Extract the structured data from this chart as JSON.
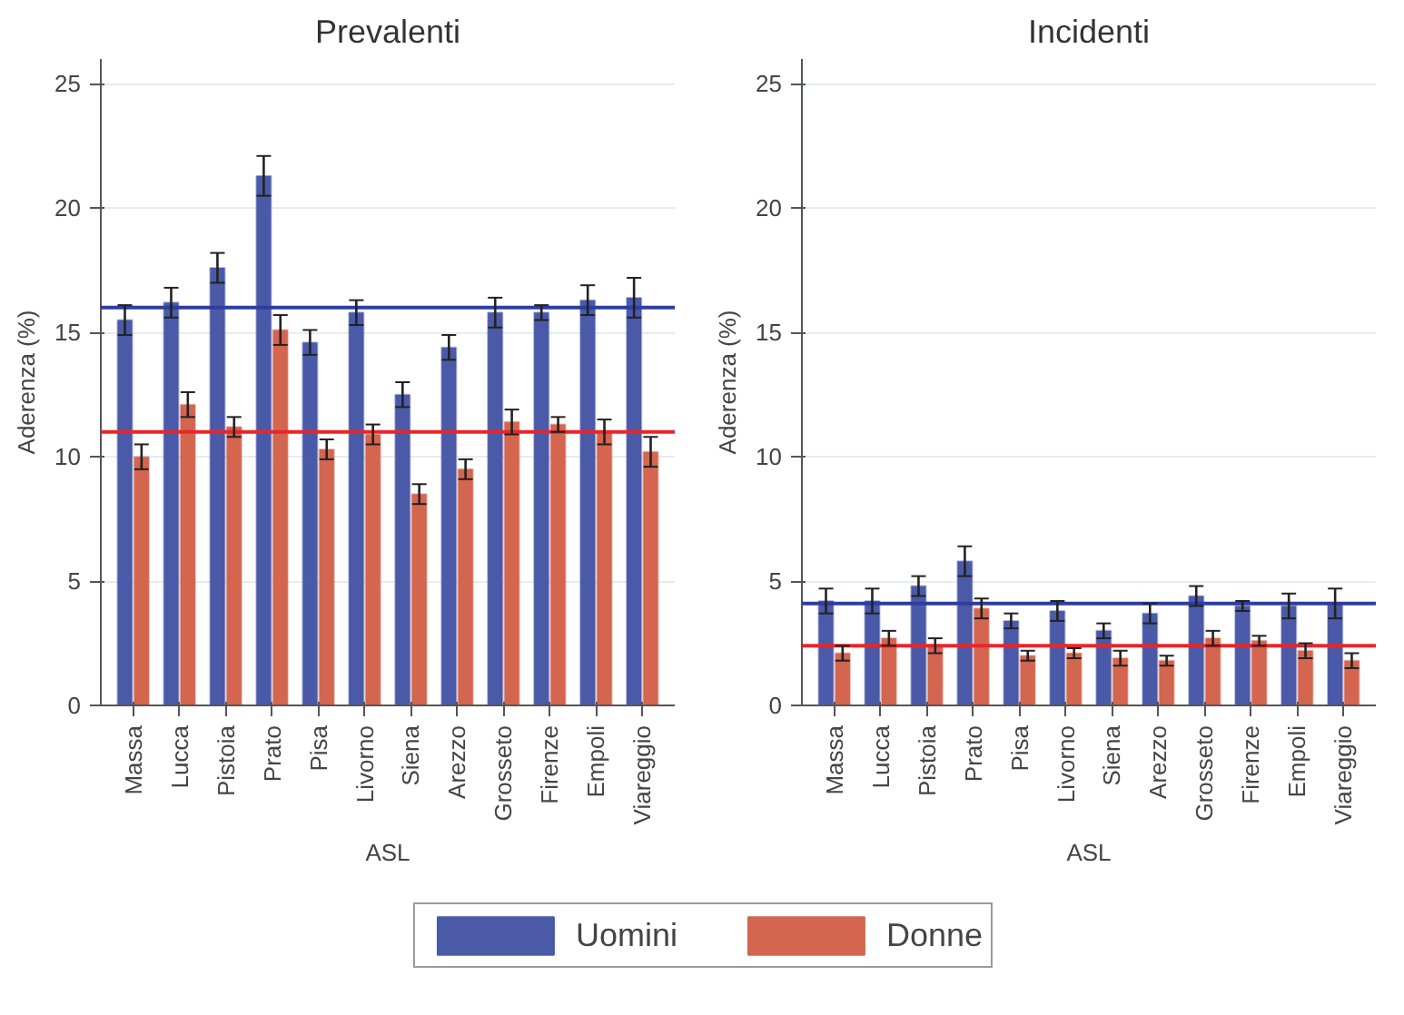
{
  "chart_data": [
    {
      "type": "bar",
      "title": "Prevalenti",
      "xlabel": "ASL",
      "ylabel": "Aderenza (%)",
      "categories": [
        "Massa",
        "Lucca",
        "Pistoia",
        "Prato",
        "Pisa",
        "Livorno",
        "Siena",
        "Arezzo",
        "Grosseto",
        "Firenze",
        "Empoli",
        "Viareggio"
      ],
      "series": [
        {
          "name": "Uomini",
          "color": "#4a5aa8",
          "values": [
            15.5,
            16.2,
            17.6,
            21.3,
            14.6,
            15.8,
            12.5,
            14.4,
            15.8,
            15.8,
            16.3,
            16.4
          ],
          "errors": [
            0.6,
            0.6,
            0.6,
            0.8,
            0.5,
            0.5,
            0.5,
            0.5,
            0.6,
            0.3,
            0.6,
            0.8
          ]
        },
        {
          "name": "Donne",
          "color": "#d4654f",
          "values": [
            10.0,
            12.1,
            11.2,
            15.1,
            10.3,
            10.9,
            8.5,
            9.5,
            11.4,
            11.3,
            11.0,
            10.2
          ],
          "errors": [
            0.5,
            0.5,
            0.4,
            0.6,
            0.4,
            0.4,
            0.4,
            0.4,
            0.5,
            0.3,
            0.5,
            0.6
          ]
        }
      ],
      "ylim": [
        0,
        26
      ],
      "yticks": [
        0,
        5,
        10,
        15,
        20,
        25
      ],
      "grid": "y",
      "legend": "bottom",
      "ref_lines": [
        {
          "axis": "y",
          "value": 16.0,
          "color": "#2e3d9e"
        },
        {
          "axis": "y",
          "value": 11.0,
          "color": "#e8262b"
        }
      ]
    },
    {
      "type": "bar",
      "title": "Incidenti",
      "xlabel": "ASL",
      "ylabel": "Aderenza (%)",
      "categories": [
        "Massa",
        "Lucca",
        "Pistoia",
        "Prato",
        "Pisa",
        "Livorno",
        "Siena",
        "Arezzo",
        "Grosseto",
        "Firenze",
        "Empoli",
        "Viareggio"
      ],
      "series": [
        {
          "name": "Uomini",
          "color": "#4a5aa8",
          "values": [
            4.2,
            4.2,
            4.8,
            5.8,
            3.4,
            3.8,
            3.0,
            3.7,
            4.4,
            4.0,
            4.0,
            4.1
          ],
          "errors": [
            0.5,
            0.5,
            0.4,
            0.6,
            0.3,
            0.4,
            0.3,
            0.4,
            0.4,
            0.2,
            0.5,
            0.6
          ]
        },
        {
          "name": "Donne",
          "color": "#d4654f",
          "values": [
            2.1,
            2.7,
            2.4,
            3.9,
            2.0,
            2.1,
            1.9,
            1.8,
            2.7,
            2.6,
            2.2,
            1.8
          ],
          "errors": [
            0.3,
            0.3,
            0.3,
            0.4,
            0.2,
            0.2,
            0.3,
            0.2,
            0.3,
            0.2,
            0.3,
            0.3
          ]
        }
      ],
      "ylim": [
        0,
        26
      ],
      "yticks": [
        0,
        5,
        10,
        15,
        20,
        25
      ],
      "grid": "y",
      "ref_lines": [
        {
          "axis": "y",
          "value": 4.1,
          "color": "#2e3d9e"
        },
        {
          "axis": "y",
          "value": 2.4,
          "color": "#e8262b"
        }
      ]
    }
  ]
}
